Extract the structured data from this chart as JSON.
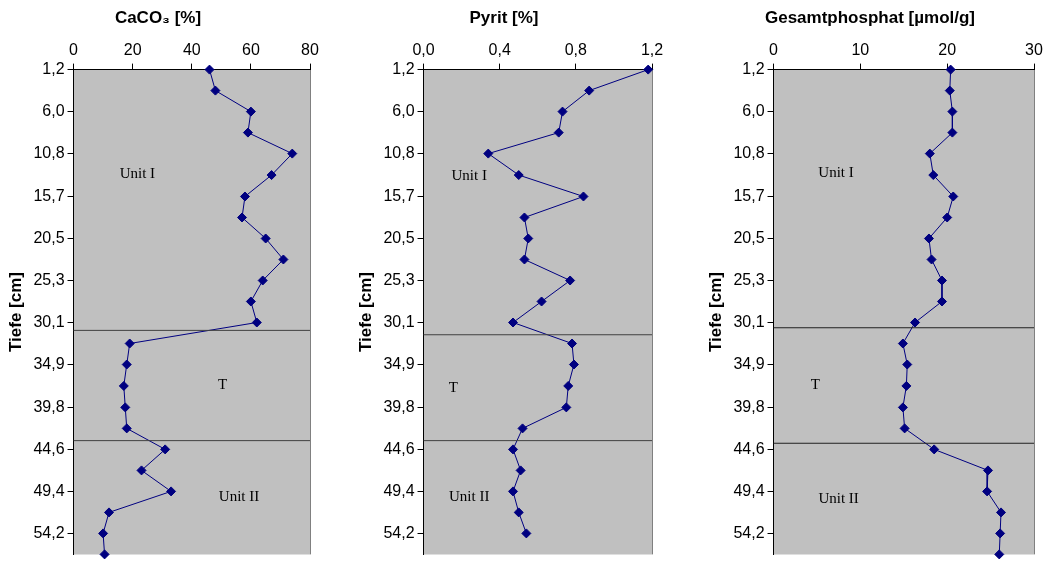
{
  "chart_data": [
    {
      "type": "line",
      "orientation": "horizontal",
      "title": "CaCO₃ [%]",
      "ylabel": "Tiefe [cm]",
      "color": "#000080",
      "marker": "diamond",
      "grid": false,
      "x": [
        1.2,
        3.6,
        6.0,
        8.4,
        10.8,
        13.25,
        15.7,
        18.1,
        20.5,
        22.9,
        25.3,
        27.7,
        30.1,
        32.5,
        34.9,
        37.35,
        39.8,
        42.2,
        44.6,
        47.0,
        49.4,
        51.8,
        54.2,
        56.6
      ],
      "values": [
        46,
        48,
        60,
        59,
        74,
        67,
        58,
        57,
        65,
        71,
        64,
        60,
        62,
        19,
        18,
        17,
        17.5,
        18,
        31,
        23,
        33,
        12,
        10,
        10.5
      ],
      "xlim": [
        0,
        80
      ],
      "xticks": [
        0,
        20,
        40,
        60,
        80
      ],
      "ylim": [
        56.6,
        1.2
      ],
      "yticks": [
        {
          "value": 1.2,
          "label": "1,2"
        },
        {
          "value": 6.0,
          "label": "6,0"
        },
        {
          "value": 10.8,
          "label": "10,8"
        },
        {
          "value": 15.7,
          "label": "15,7"
        },
        {
          "value": 20.5,
          "label": "20,5"
        },
        {
          "value": 25.3,
          "label": "25,3"
        },
        {
          "value": 30.1,
          "label": "30,1"
        },
        {
          "value": 34.9,
          "label": "34,9"
        },
        {
          "value": 39.8,
          "label": "39,8"
        },
        {
          "value": 44.6,
          "label": "44,6"
        },
        {
          "value": 49.4,
          "label": "49,4"
        },
        {
          "value": 54.2,
          "label": "54,2"
        }
      ],
      "ref_lines": [
        {
          "axis": "y",
          "value": 31.0,
          "color": "#404040"
        },
        {
          "axis": "y",
          "value": 43.6,
          "color": "#404040"
        }
      ],
      "annotations": [
        "Unit I",
        "T",
        "Unit II"
      ]
    },
    {
      "type": "line",
      "orientation": "horizontal",
      "title": "Pyrit [%]",
      "ylabel": "Tiefe [cm]",
      "color": "#000080",
      "marker": "diamond",
      "grid": false,
      "x": [
        1.2,
        3.6,
        6.0,
        8.4,
        10.8,
        13.25,
        15.7,
        18.1,
        20.5,
        22.9,
        25.3,
        27.7,
        30.1,
        32.5,
        34.9,
        37.35,
        39.8,
        42.2,
        44.6,
        47.0,
        49.4,
        51.8,
        54.2
      ],
      "values": [
        1.18,
        0.87,
        0.73,
        0.71,
        0.34,
        0.5,
        0.84,
        0.53,
        0.55,
        0.53,
        0.77,
        0.62,
        0.47,
        0.78,
        0.79,
        0.76,
        0.75,
        0.52,
        0.47,
        0.51,
        0.47,
        0.5,
        0.54
      ],
      "xlim": [
        0,
        1.2
      ],
      "xticks": [
        {
          "value": 0,
          "label": "0,0"
        },
        {
          "value": 0.4,
          "label": "0,4"
        },
        {
          "value": 0.8,
          "label": "0,8"
        },
        {
          "value": 1.2,
          "label": "1,2"
        }
      ],
      "ylim": [
        56.6,
        1.2
      ],
      "yticks": [
        {
          "value": 1.2,
          "label": "1,2"
        },
        {
          "value": 6.0,
          "label": "6,0"
        },
        {
          "value": 10.8,
          "label": "10,8"
        },
        {
          "value": 15.7,
          "label": "15,7"
        },
        {
          "value": 20.5,
          "label": "20,5"
        },
        {
          "value": 25.3,
          "label": "25,3"
        },
        {
          "value": 30.1,
          "label": "30,1"
        },
        {
          "value": 34.9,
          "label": "34,9"
        },
        {
          "value": 39.8,
          "label": "39,8"
        },
        {
          "value": 44.6,
          "label": "44,6"
        },
        {
          "value": 49.4,
          "label": "49,4"
        },
        {
          "value": 54.2,
          "label": "54,2"
        }
      ],
      "ref_lines": [
        {
          "axis": "y",
          "value": 31.5,
          "color": "#404040"
        },
        {
          "axis": "y",
          "value": 43.6,
          "color": "#404040"
        }
      ],
      "annotations": [
        "Unit I",
        "T",
        "Unit II"
      ]
    },
    {
      "type": "line",
      "orientation": "horizontal",
      "title": "Gesamtphosphat [µmol/g]",
      "ylabel": "Tiefe [cm]",
      "color": "#000080",
      "marker": "diamond",
      "grid": false,
      "x": [
        1.2,
        3.6,
        6.0,
        8.4,
        10.8,
        13.25,
        15.7,
        18.1,
        20.5,
        22.9,
        25.3,
        27.7,
        30.1,
        32.5,
        34.9,
        37.35,
        39.8,
        42.2,
        44.6,
        47.0,
        49.4,
        51.8,
        54.2,
        56.6
      ],
      "values": [
        20.4,
        20.3,
        20.6,
        20.6,
        18.0,
        18.4,
        20.7,
        20.0,
        17.9,
        18.2,
        19.4,
        19.4,
        16.3,
        14.9,
        15.4,
        15.3,
        14.9,
        15.1,
        18.5,
        24.7,
        24.6,
        26.2,
        26.1,
        26.0
      ],
      "xlim": [
        0,
        30
      ],
      "xticks": [
        0,
        10,
        20,
        30
      ],
      "ylim": [
        56.6,
        1.2
      ],
      "yticks": [
        {
          "value": 1.2,
          "label": "1,2"
        },
        {
          "value": 6.0,
          "label": "6,0"
        },
        {
          "value": 10.8,
          "label": "10,8"
        },
        {
          "value": 15.7,
          "label": "15,7"
        },
        {
          "value": 20.5,
          "label": "20,5"
        },
        {
          "value": 25.3,
          "label": "25,3"
        },
        {
          "value": 30.1,
          "label": "30,1"
        },
        {
          "value": 34.9,
          "label": "34,9"
        },
        {
          "value": 39.8,
          "label": "39,8"
        },
        {
          "value": 44.6,
          "label": "44,6"
        },
        {
          "value": 49.4,
          "label": "49,4"
        },
        {
          "value": 54.2,
          "label": "54,2"
        }
      ],
      "ref_lines": [
        {
          "axis": "y",
          "value": 30.7,
          "color": "#202020"
        },
        {
          "axis": "y",
          "value": 43.9,
          "color": "#202020"
        }
      ],
      "annotations": [
        "Unit I",
        "T",
        "Unit II"
      ]
    }
  ]
}
